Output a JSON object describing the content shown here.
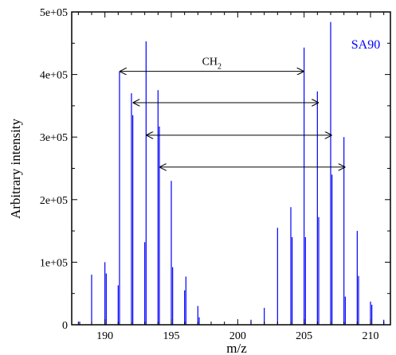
{
  "chart_data": {
    "type": "bar",
    "xlabel": "m/z",
    "ylabel": "Arbitrary intensity",
    "xlim": [
      187.5,
      211.5
    ],
    "ylim": [
      0,
      500000
    ],
    "x_ticks": [
      190,
      195,
      200,
      205,
      210
    ],
    "y_ticks": [
      0,
      100000,
      200000,
      300000,
      400000,
      500000
    ],
    "y_tick_labels": [
      "0",
      "1e+05",
      "2e+05",
      "3e+05",
      "4e+05",
      "5e+05"
    ],
    "series": [
      {
        "name": "SA90",
        "color": "#0000ff",
        "points": [
          {
            "x": 188.1,
            "y": 5000
          },
          {
            "x": 189.0,
            "y": 80000
          },
          {
            "x": 190.0,
            "y": 100000
          },
          {
            "x": 190.1,
            "y": 82000
          },
          {
            "x": 191.0,
            "y": 63000
          },
          {
            "x": 191.1,
            "y": 405000
          },
          {
            "x": 192.0,
            "y": 370000
          },
          {
            "x": 192.1,
            "y": 335000
          },
          {
            "x": 193.0,
            "y": 132000
          },
          {
            "x": 193.1,
            "y": 453000
          },
          {
            "x": 194.0,
            "y": 375000
          },
          {
            "x": 194.1,
            "y": 317000
          },
          {
            "x": 195.0,
            "y": 230000
          },
          {
            "x": 195.1,
            "y": 92000
          },
          {
            "x": 196.0,
            "y": 55000
          },
          {
            "x": 196.1,
            "y": 77000
          },
          {
            "x": 197.0,
            "y": 30000
          },
          {
            "x": 197.1,
            "y": 12000
          },
          {
            "x": 201.0,
            "y": 8000
          },
          {
            "x": 202.0,
            "y": 27000
          },
          {
            "x": 203.0,
            "y": 155000
          },
          {
            "x": 204.0,
            "y": 188000
          },
          {
            "x": 204.1,
            "y": 140000
          },
          {
            "x": 205.0,
            "y": 443000
          },
          {
            "x": 205.1,
            "y": 140000
          },
          {
            "x": 206.0,
            "y": 373000
          },
          {
            "x": 206.1,
            "y": 172000
          },
          {
            "x": 207.0,
            "y": 484000
          },
          {
            "x": 207.1,
            "y": 240000
          },
          {
            "x": 208.0,
            "y": 300000
          },
          {
            "x": 208.1,
            "y": 45000
          },
          {
            "x": 209.0,
            "y": 150000
          },
          {
            "x": 209.1,
            "y": 78000
          },
          {
            "x": 210.0,
            "y": 37000
          },
          {
            "x": 210.1,
            "y": 32000
          },
          {
            "x": 211.0,
            "y": 8000
          }
        ]
      }
    ],
    "legend": {
      "text": "SA90",
      "placement": "top-right"
    },
    "annotations": [
      {
        "x1": 191.1,
        "x2": 205.0,
        "y": 405000,
        "label": "CH",
        "subscript": "2"
      },
      {
        "x1": 192.1,
        "x2": 206.1,
        "y": 355000
      },
      {
        "x1": 193.1,
        "x2": 207.1,
        "y": 303000
      },
      {
        "x1": 194.1,
        "x2": 208.1,
        "y": 252000
      }
    ]
  }
}
